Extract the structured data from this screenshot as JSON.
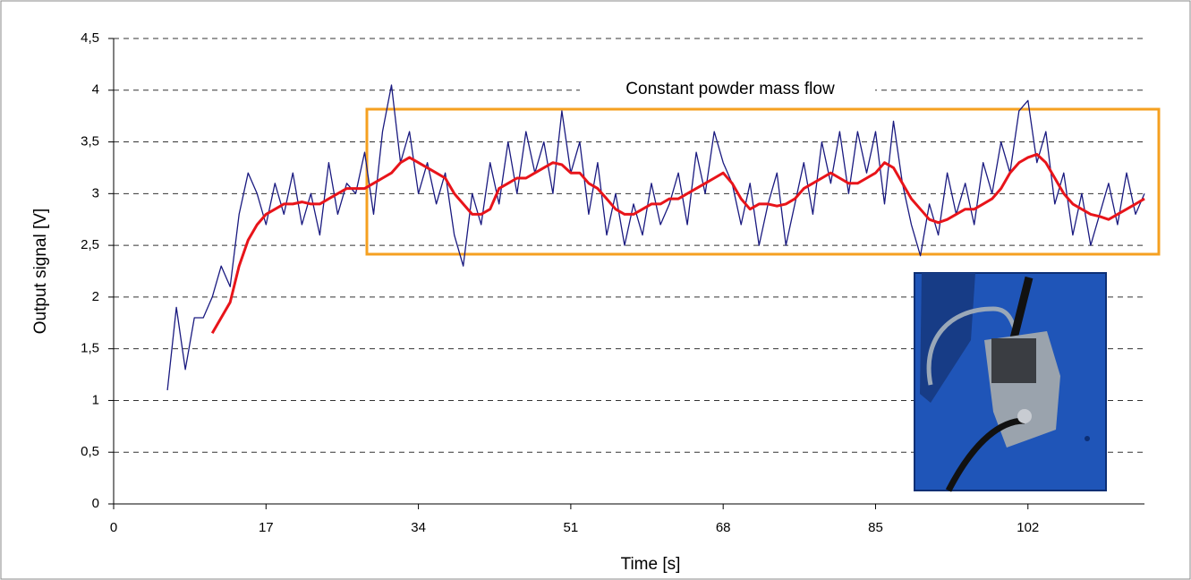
{
  "chart_data": {
    "type": "line",
    "x_label": "Time [s]",
    "y_label": "Output signal [V]",
    "annotation": "Constant powder mass flow",
    "x": [
      6,
      7,
      8,
      9,
      10,
      11,
      12,
      13,
      14,
      15,
      16,
      17,
      18,
      19,
      20,
      21,
      22,
      23,
      24,
      25,
      26,
      27,
      28,
      29,
      30,
      31,
      32,
      33,
      34,
      35,
      36,
      37,
      38,
      39,
      40,
      41,
      42,
      43,
      44,
      45,
      46,
      47,
      48,
      49,
      50,
      51,
      52,
      53,
      54,
      55,
      56,
      57,
      58,
      59,
      60,
      61,
      62,
      63,
      64,
      65,
      66,
      67,
      68,
      69,
      70,
      71,
      72,
      73,
      74,
      75,
      76,
      77,
      78,
      79,
      80,
      81,
      82,
      83,
      84,
      85,
      86,
      87,
      88,
      89,
      90,
      91,
      92,
      93,
      94,
      95,
      96,
      97,
      98,
      99,
      100,
      101,
      102,
      103,
      104,
      105,
      106,
      107,
      108,
      109,
      110,
      111,
      112,
      113,
      114,
      115
    ],
    "series": [
      {
        "color": "#1a1a80",
        "width": 1.3,
        "values": [
          1.1,
          1.9,
          1.3,
          1.8,
          1.8,
          2.0,
          2.3,
          2.1,
          2.8,
          3.2,
          3.0,
          2.7,
          3.1,
          2.8,
          3.2,
          2.7,
          3.0,
          2.6,
          3.3,
          2.8,
          3.1,
          3.0,
          3.4,
          2.8,
          3.6,
          4.05,
          3.3,
          3.6,
          3.0,
          3.3,
          2.9,
          3.2,
          2.6,
          2.3,
          3.0,
          2.7,
          3.3,
          2.9,
          3.5,
          3.0,
          3.6,
          3.2,
          3.5,
          3.0,
          3.8,
          3.2,
          3.5,
          2.8,
          3.3,
          2.6,
          3.0,
          2.5,
          2.9,
          2.6,
          3.1,
          2.7,
          2.9,
          3.2,
          2.7,
          3.4,
          3.0,
          3.6,
          3.3,
          3.1,
          2.7,
          3.1,
          2.5,
          2.9,
          3.2,
          2.5,
          2.9,
          3.3,
          2.8,
          3.5,
          3.1,
          3.6,
          3.0,
          3.6,
          3.2,
          3.6,
          2.9,
          3.7,
          3.1,
          2.7,
          2.4,
          2.9,
          2.6,
          3.2,
          2.8,
          3.1,
          2.7,
          3.3,
          3.0,
          3.5,
          3.2,
          3.8,
          3.9,
          3.3,
          3.6,
          2.9,
          3.2,
          2.6,
          3.0,
          2.5,
          2.8,
          3.1,
          2.7,
          3.2,
          2.8,
          3.0
        ]
      },
      {
        "color": "#e8141a",
        "width": 3,
        "values": [
          null,
          null,
          null,
          null,
          null,
          1.65,
          1.8,
          1.95,
          2.3,
          2.55,
          2.7,
          2.8,
          2.85,
          2.9,
          2.9,
          2.92,
          2.9,
          2.9,
          2.95,
          3.0,
          3.05,
          3.05,
          3.05,
          3.1,
          3.15,
          3.2,
          3.3,
          3.35,
          3.3,
          3.25,
          3.2,
          3.15,
          3.0,
          2.9,
          2.8,
          2.8,
          2.85,
          3.05,
          3.1,
          3.15,
          3.15,
          3.2,
          3.25,
          3.3,
          3.28,
          3.2,
          3.2,
          3.1,
          3.05,
          2.95,
          2.85,
          2.8,
          2.8,
          2.85,
          2.9,
          2.9,
          2.95,
          2.95,
          3.0,
          3.05,
          3.1,
          3.15,
          3.2,
          3.1,
          2.95,
          2.85,
          2.9,
          2.9,
          2.88,
          2.9,
          2.95,
          3.05,
          3.1,
          3.15,
          3.2,
          3.15,
          3.1,
          3.1,
          3.15,
          3.2,
          3.3,
          3.25,
          3.1,
          2.95,
          2.85,
          2.75,
          2.72,
          2.75,
          2.8,
          2.85,
          2.85,
          2.9,
          2.95,
          3.05,
          3.2,
          3.3,
          3.35,
          3.38,
          3.3,
          3.15,
          3.0,
          2.9,
          2.85,
          2.8,
          2.78,
          2.75,
          2.8,
          2.85,
          2.9,
          2.95
        ]
      }
    ],
    "xlim": [
      0,
      115
    ],
    "xticks": [
      0,
      17,
      34,
      51,
      68,
      85,
      102
    ],
    "ylim": [
      0,
      4.5
    ],
    "yticks": [
      0,
      {
        "value": 0.5,
        "label": "0,5"
      },
      1,
      {
        "value": 1.5,
        "label": "1,5"
      },
      2,
      {
        "value": 2.5,
        "label": "2,5"
      },
      3,
      {
        "value": 3.5,
        "label": "3,5"
      },
      4,
      {
        "value": 4.5,
        "label": "4,5"
      }
    ],
    "grid": true
  }
}
